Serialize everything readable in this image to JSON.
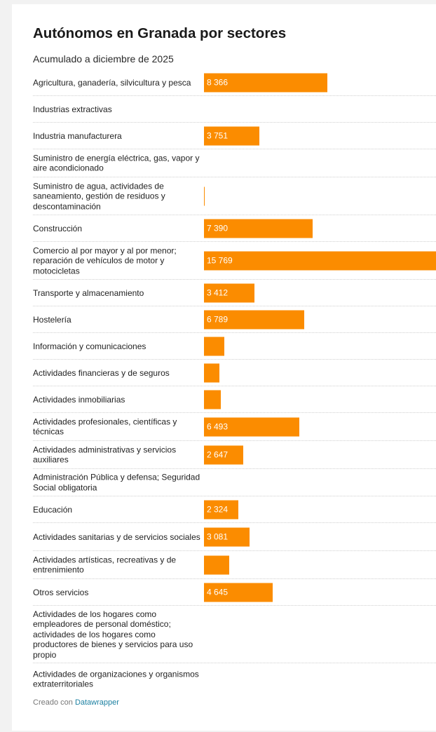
{
  "page": {
    "title": "Autónomos en Granada por sectores",
    "subtitle": "Acumulado a diciembre de 2025",
    "footer_prefix": "Creado con",
    "footer_link": "Datawrapper"
  },
  "colors": {
    "bar": "#fb8c00",
    "label": "#222222",
    "link": "#1d81a2"
  },
  "chart_data": {
    "type": "bar",
    "orientation": "horizontal",
    "title": "Autónomos en Granada por sectores",
    "subtitle": "Acumulado a diciembre de 2025",
    "xlim": [
      0,
      15769
    ],
    "categories": [
      "Agricultura, ganadería, silvicultura y pesca",
      "Industrias extractivas",
      "Industria manufacturera",
      "Suministro de energía eléctrica, gas, vapor y aire acondicionado",
      "Suministro de agua, actividades de saneamiento, gestión de residuos y descontaminación",
      "Construcción",
      "Comercio al por mayor y al por menor; reparación de vehículos de motor y motocicletas",
      "Transporte y almacenamiento",
      "Hostelería",
      "Información y comunicaciones",
      "Actividades financieras y de seguros",
      "Actividades inmobiliarias",
      "Actividades profesionales, científicas y técnicas",
      "Actividades administrativas y servicios auxiliares",
      "Administración Pública y defensa; Seguridad Social obligatoria",
      "Educación",
      "Actividades sanitarias y de servicios sociales",
      "Actividades artísticas, recreativas y de entrenimiento",
      "Otros servicios",
      "Actividades de los hogares como empleadores de personal doméstico; actividades de los hogares como productores de bienes y servicios para uso propio",
      "Actividades de organizaciones y organismos extraterritoriales"
    ],
    "values": [
      8366,
      0,
      3751,
      0,
      60,
      7390,
      15769,
      3412,
      6789,
      1400,
      1060,
      1150,
      6493,
      2647,
      0,
      2324,
      3081,
      1700,
      4645,
      0,
      0
    ],
    "value_labels": [
      "8 366",
      "",
      "3 751",
      "",
      "",
      "7 390",
      "15 769",
      "3 412",
      "6 789",
      "",
      "",
      "",
      "6 493",
      "2 647",
      "",
      "2 324",
      "3 081",
      "",
      "4 645",
      "",
      ""
    ]
  }
}
